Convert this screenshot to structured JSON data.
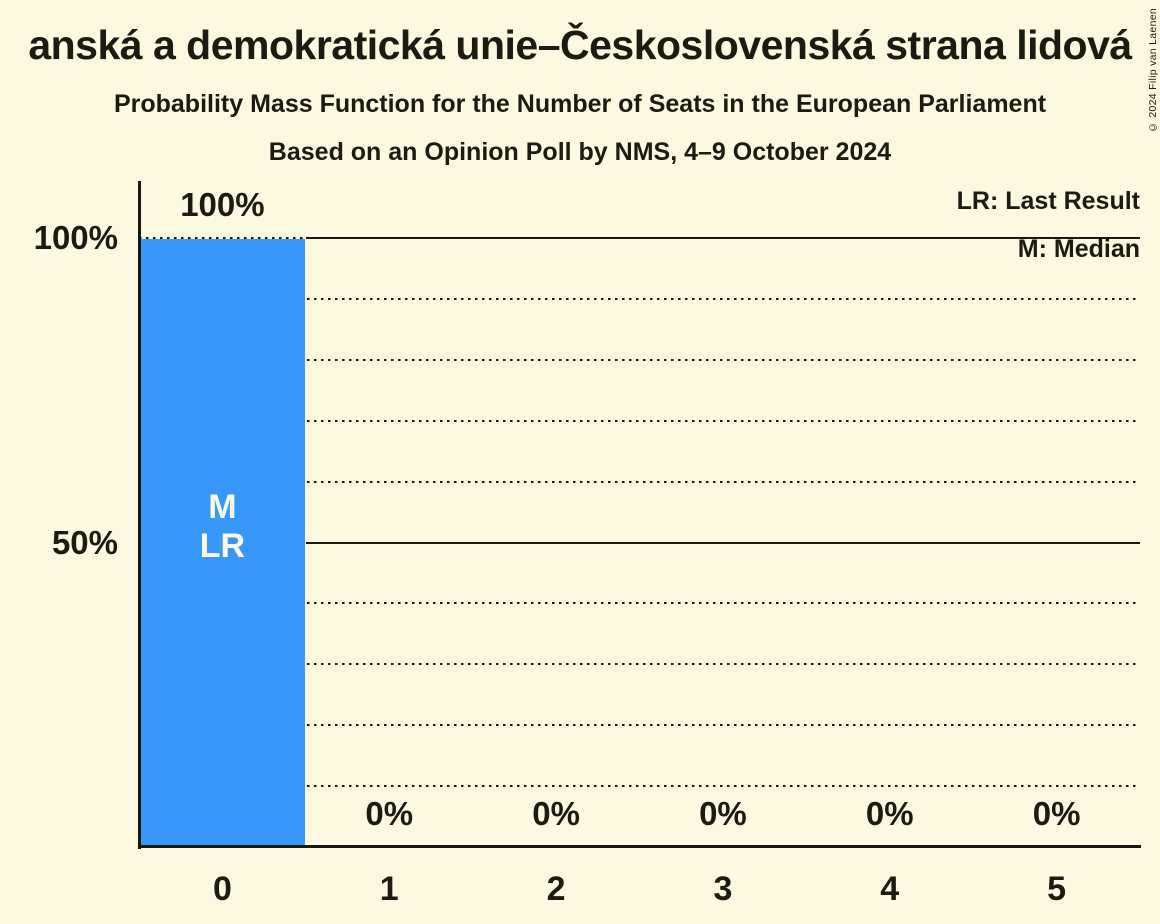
{
  "copyright": "© 2024 Filip van Laenen",
  "colors": {
    "background": "#FDF8E0",
    "bar": "#3898FA",
    "text": "#1B1B12",
    "line": "#181810",
    "bar_label": "#FDF8E0"
  },
  "chart_data": {
    "type": "bar",
    "title_visible": "anská a demokratická unie–Československá strana lidová",
    "subtitle": "Probability Mass Function for the Number of Seats in the European Parliament",
    "poll_line": "Based on an Opinion Poll by NMS, 4–9 October 2024",
    "categories": [
      "0",
      "1",
      "2",
      "3",
      "4",
      "5"
    ],
    "values": [
      100,
      0,
      0,
      0,
      0,
      0
    ],
    "value_labels": [
      "100%",
      "0%",
      "0%",
      "0%",
      "0%",
      "0%"
    ],
    "annotations": [
      {
        "category_index": 0,
        "lines": [
          "M",
          "LR"
        ]
      }
    ],
    "xlabel": "",
    "ylabel": "",
    "ylim": [
      0,
      100
    ],
    "y_ticks": [
      {
        "value": 100,
        "label": "100%"
      },
      {
        "value": 50,
        "label": "50%"
      }
    ],
    "gridlines": {
      "dotted_percent": [
        10,
        20,
        30,
        40,
        60,
        70,
        80,
        90,
        100
      ],
      "solid_percent": [
        50,
        100
      ]
    },
    "legend": [
      {
        "label": "LR: Last Result"
      },
      {
        "label": "M: Median"
      }
    ],
    "legend_position": "top-right"
  }
}
